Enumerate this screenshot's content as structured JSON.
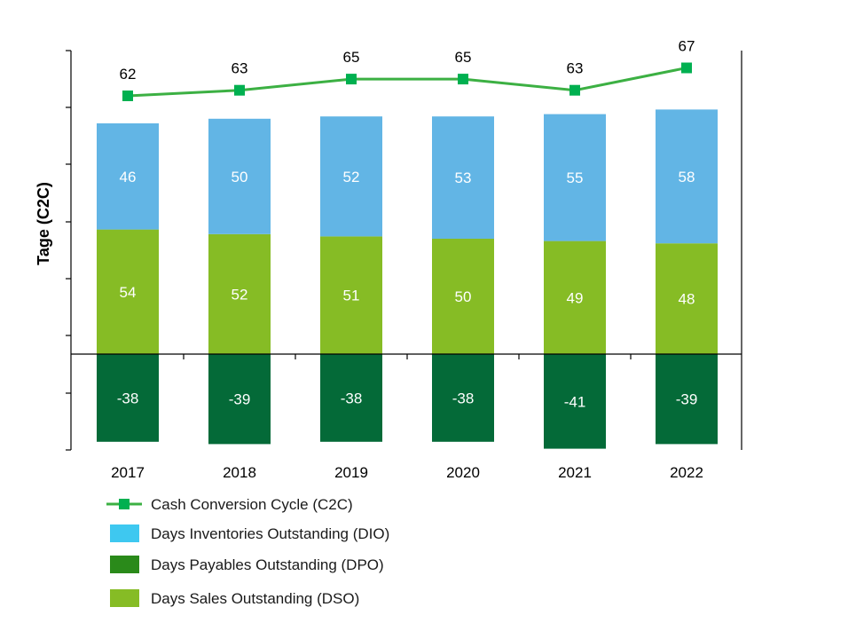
{
  "chart_data": {
    "type": "bar",
    "stacked": true,
    "title": "",
    "xlabel": "",
    "ylabel": "Tage (C2C)",
    "categories": [
      "2017",
      "2018",
      "2019",
      "2020",
      "2021",
      "2022"
    ],
    "ylim": [
      -42,
      105
    ],
    "series": [
      {
        "name": "Days Sales Outstanding (DSO)",
        "kind": "bar",
        "color": "#86bc25",
        "values": [
          54,
          52,
          51,
          50,
          49,
          48
        ]
      },
      {
        "name": "Days Inventories Outstanding (DIO)",
        "kind": "bar",
        "color": "#62b5e5",
        "values": [
          46,
          50,
          52,
          53,
          55,
          58
        ]
      },
      {
        "name": "Days Payables Outstanding (DPO)",
        "kind": "bar",
        "color": "#046a38",
        "values": [
          -38,
          -39,
          -38,
          -38,
          -41,
          -39
        ]
      },
      {
        "name": "Cash Conversion Cycle (C2C)",
        "kind": "line",
        "color": "#3cb043",
        "marker_color": "#00b050",
        "values": [
          62,
          63,
          65,
          65,
          63,
          67
        ]
      }
    ],
    "legend": {
      "position": "bottom-left",
      "entries": [
        {
          "label": "Cash Conversion Cycle (C2C)",
          "kind": "line",
          "color": "#3cb043",
          "marker_color": "#00b050"
        },
        {
          "label": "Days Inventories Outstanding (DIO)",
          "kind": "box",
          "color": "#3ec8f0"
        },
        {
          "label": "Days Payables Outstanding (DPO)",
          "kind": "box",
          "color": "#2a8a1a"
        },
        {
          "label": "Days Sales Outstanding (DSO)",
          "kind": "box",
          "color": "#86bc25"
        }
      ]
    }
  }
}
